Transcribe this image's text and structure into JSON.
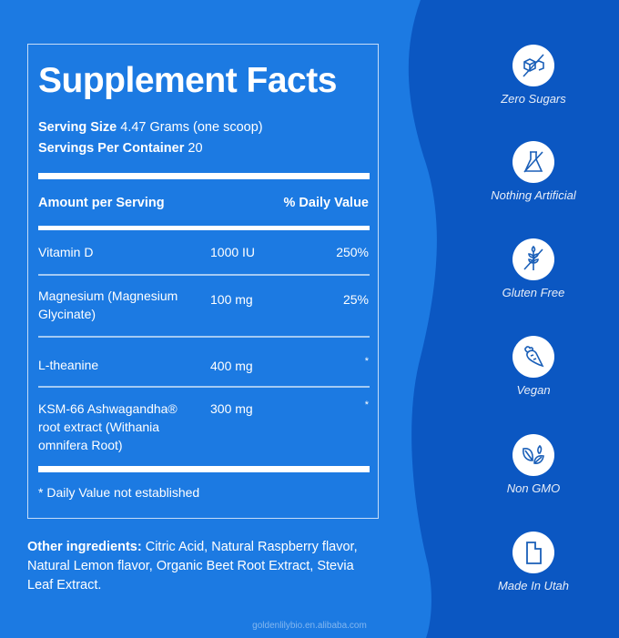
{
  "facts": {
    "title": "Supplement Facts",
    "serving_size_label": "Serving Size",
    "serving_size_value": "4.47 Grams (one scoop)",
    "servings_label": "Servings Per Container",
    "servings_value": "20",
    "header_amount": "Amount per Serving",
    "header_dv": "% Daily Value",
    "rows": [
      {
        "name": "Vitamin D",
        "amount": "1000 IU",
        "dv": "250%"
      },
      {
        "name": "Magnesium (Magnesium Glycinate)",
        "amount": "100 mg",
        "dv": "25%"
      },
      {
        "name": "L-theanine",
        "amount": "400 mg",
        "dv": "*"
      },
      {
        "name": "KSM-66 Ashwagandha® root extract (Withania omnifera Root)",
        "amount": "300 mg",
        "dv": "*"
      }
    ],
    "footnote": "* Daily Value not established"
  },
  "other_ingredients": {
    "label": "Other ingredients:",
    "text": "Citric Acid, Natural Raspberry flavor, Natural Lemon flavor, Organic Beet Root Extract, Stevia Leaf Extract."
  },
  "badges": [
    {
      "icon": "sugar-cubes-crossed-icon",
      "label": "Zero Sugars"
    },
    {
      "icon": "flask-crossed-icon",
      "label": "Nothing Artificial"
    },
    {
      "icon": "wheat-crossed-icon",
      "label": "Gluten Free"
    },
    {
      "icon": "carrot-icon",
      "label": "Vegan"
    },
    {
      "icon": "leaves-icon",
      "label": "Non GMO"
    },
    {
      "icon": "utah-map-icon",
      "label": "Made In Utah"
    }
  ],
  "watermark": "goldenlilybio.en.alibaba.com",
  "colors": {
    "background_left": "#1c7ae2",
    "background_right": "#0b57c2",
    "icon_stroke": "#1a5fb8"
  }
}
